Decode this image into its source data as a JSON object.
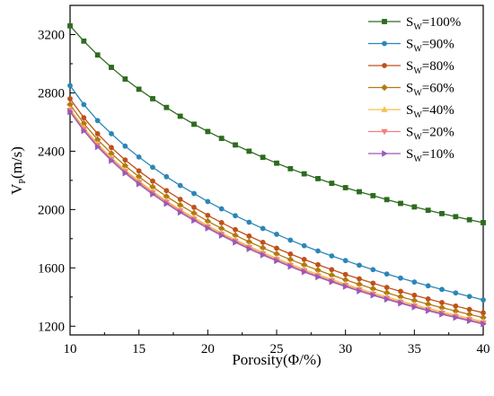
{
  "chart_data": {
    "type": "line",
    "xlabel": "Porosity(Φ/%)",
    "ylabel_main": "V",
    "ylabel_sub": "P",
    "ylabel_rest": "(m/s)",
    "xlim": [
      10,
      40
    ],
    "ylim": [
      1140,
      3400
    ],
    "x_ticks": [
      10,
      15,
      20,
      25,
      30,
      35,
      40
    ],
    "y_ticks": [
      1200,
      1600,
      2000,
      2400,
      2800,
      3200
    ],
    "x_tick_labels": [
      "10",
      "15",
      "20",
      "25",
      "30",
      "35",
      "40"
    ],
    "y_tick_labels": [
      "1200",
      "1600",
      "2000",
      "2400",
      "2800",
      "3200"
    ],
    "grid": false,
    "legend_position": "top-right",
    "x": [
      10,
      11,
      12,
      13,
      14,
      15,
      16,
      17,
      18,
      19,
      20,
      21,
      22,
      23,
      24,
      25,
      26,
      27,
      28,
      29,
      30,
      31,
      32,
      33,
      34,
      35,
      36,
      37,
      38,
      39,
      40
    ],
    "series": [
      {
        "label_main": "S",
        "label_sub": "W",
        "label_rest": "=100%",
        "color": "#2e6b1f",
        "marker": "square",
        "values": [
          3260,
          3155,
          3060,
          2975,
          2895,
          2825,
          2760,
          2700,
          2640,
          2585,
          2535,
          2488,
          2443,
          2400,
          2358,
          2318,
          2280,
          2245,
          2212,
          2180,
          2150,
          2122,
          2095,
          2068,
          2042,
          2018,
          1995,
          1972,
          1951,
          1930,
          1910
        ]
      },
      {
        "label_main": "S",
        "label_sub": "W",
        "label_rest": "=90%",
        "color": "#2b86b6",
        "marker": "circle",
        "values": [
          2850,
          2720,
          2610,
          2520,
          2435,
          2360,
          2290,
          2225,
          2165,
          2110,
          2055,
          2005,
          1958,
          1913,
          1870,
          1830,
          1790,
          1752,
          1716,
          1682,
          1650,
          1618,
          1588,
          1558,
          1530,
          1503,
          1477,
          1452,
          1428,
          1404,
          1380
        ]
      },
      {
        "label_main": "S",
        "label_sub": "W",
        "label_rest": "=80%",
        "color": "#c0501a",
        "marker": "circle",
        "values": [
          2760,
          2630,
          2520,
          2425,
          2340,
          2265,
          2195,
          2130,
          2070,
          2015,
          1960,
          1910,
          1862,
          1818,
          1775,
          1735,
          1695,
          1658,
          1622,
          1588,
          1555,
          1525,
          1495,
          1466,
          1439,
          1412,
          1387,
          1362,
          1338,
          1315,
          1292
        ]
      },
      {
        "label_main": "S",
        "label_sub": "W",
        "label_rest": "=60%",
        "color": "#b07a10",
        "marker": "diamond",
        "values": [
          2720,
          2590,
          2480,
          2385,
          2300,
          2225,
          2155,
          2090,
          2030,
          1975,
          1920,
          1870,
          1823,
          1779,
          1737,
          1696,
          1657,
          1620,
          1584,
          1550,
          1518,
          1487,
          1457,
          1429,
          1402,
          1376,
          1351,
          1327,
          1304,
          1281,
          1259
        ]
      },
      {
        "label_main": "S",
        "label_sub": "W",
        "label_rest": "=40%",
        "color": "#f2c14e",
        "marker": "triangle-up",
        "values": [
          2690,
          2560,
          2450,
          2355,
          2270,
          2195,
          2125,
          2060,
          2000,
          1945,
          1890,
          1840,
          1793,
          1749,
          1706,
          1666,
          1627,
          1590,
          1555,
          1521,
          1489,
          1458,
          1429,
          1401,
          1374,
          1348,
          1323,
          1299,
          1276,
          1254,
          1232
        ]
      },
      {
        "label_main": "S",
        "label_sub": "W",
        "label_rest": "=20%",
        "color": "#f08080",
        "marker": "triangle-down",
        "values": [
          2680,
          2550,
          2440,
          2345,
          2260,
          2185,
          2115,
          2050,
          1990,
          1934,
          1880,
          1830,
          1783,
          1739,
          1696,
          1656,
          1617,
          1580,
          1545,
          1511,
          1479,
          1449,
          1419,
          1391,
          1364,
          1338,
          1313,
          1289,
          1266,
          1244,
          1222
        ]
      },
      {
        "label_main": "S",
        "label_sub": "W",
        "label_rest": "=10%",
        "color": "#9b59b6",
        "marker": "triangle-right",
        "values": [
          2670,
          2540,
          2430,
          2335,
          2250,
          2175,
          2105,
          2040,
          1980,
          1925,
          1872,
          1822,
          1775,
          1730,
          1688,
          1648,
          1609,
          1572,
          1537,
          1504,
          1472,
          1441,
          1412,
          1384,
          1357,
          1331,
          1306,
          1282,
          1259,
          1237,
          1215
        ]
      }
    ]
  }
}
